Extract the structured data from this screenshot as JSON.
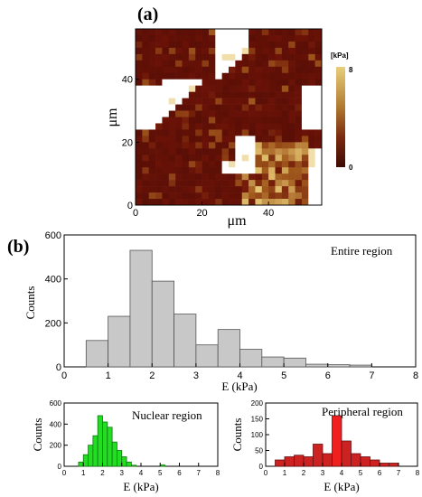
{
  "panel_a": {
    "label": "(a)"
  },
  "panel_b": {
    "label": "(b)"
  },
  "chart_data": [
    {
      "id": "map",
      "type": "heatmap",
      "xlabel": "μm",
      "ylabel": "μm",
      "x_ticks": [
        "0",
        "20",
        "40"
      ],
      "y_ticks": [
        "0",
        "20",
        "40"
      ],
      "xlim": [
        0,
        56
      ],
      "ylim": [
        0,
        56
      ],
      "colorbar": {
        "unit": "[kPa]",
        "min_label": "0",
        "max_label": "8",
        "min": 0,
        "max": 8
      },
      "colors": {
        "low": "#6b1207",
        "mid": "#a0581c",
        "high": "#e6c873",
        "empty": "#ffffff"
      }
    },
    {
      "id": "entire",
      "type": "bar",
      "annotation": "Entire region",
      "xlabel": "E (kPa)",
      "ylabel": "Counts",
      "x_ticks": [
        "0",
        "1",
        "2",
        "3",
        "4",
        "5",
        "6",
        "7",
        "8"
      ],
      "y_ticks": [
        "0",
        "200",
        "400",
        "600"
      ],
      "xlim": [
        0,
        8
      ],
      "ylim": [
        0,
        600
      ],
      "bin_width": 0.5,
      "bin_starts": [
        0.5,
        1.0,
        1.5,
        2.0,
        2.5,
        3.0,
        3.5,
        4.0,
        4.5,
        5.0,
        5.5,
        6.0,
        6.5
      ],
      "values": [
        120,
        230,
        530,
        390,
        240,
        100,
        170,
        80,
        45,
        40,
        12,
        10,
        8
      ],
      "bar_color": "#c8c8c8"
    },
    {
      "id": "nuclear",
      "type": "bar",
      "annotation": "Nuclear region",
      "xlabel": "E (kPa)",
      "ylabel": "Counts",
      "x_ticks": [
        "0",
        "1",
        "2",
        "3",
        "4",
        "5",
        "6",
        "7",
        "8"
      ],
      "y_ticks": [
        "0",
        "200",
        "400",
        "600"
      ],
      "xlim": [
        0,
        8
      ],
      "ylim": [
        0,
        600
      ],
      "bin_width": 0.25,
      "bin_starts": [
        0.75,
        1.0,
        1.25,
        1.5,
        1.75,
        2.0,
        2.25,
        2.5,
        2.75,
        3.0,
        3.25,
        3.5,
        5.0
      ],
      "values": [
        40,
        110,
        200,
        290,
        480,
        420,
        370,
        230,
        150,
        90,
        40,
        10,
        12
      ],
      "bar_color": "#22dd22"
    },
    {
      "id": "peripheral",
      "type": "bar",
      "annotation": "Peripheral region",
      "xlabel": "E (kPa)",
      "ylabel": "Counts",
      "x_ticks": [
        "0",
        "1",
        "2",
        "3",
        "4",
        "5",
        "6",
        "7",
        "8"
      ],
      "y_ticks": [
        "0",
        "50",
        "100",
        "150",
        "200"
      ],
      "xlim": [
        0,
        8
      ],
      "ylim": [
        0,
        200
      ],
      "bin_width": 0.5,
      "bin_starts": [
        0.5,
        1.0,
        1.5,
        2.0,
        2.5,
        3.0,
        3.5,
        4.0,
        4.5,
        5.0,
        5.5,
        6.0,
        6.5
      ],
      "values": [
        20,
        30,
        35,
        30,
        70,
        40,
        160,
        80,
        40,
        30,
        20,
        10,
        10
      ],
      "bar_color": "#cc2222",
      "highlight_color": "#ee2020"
    }
  ]
}
